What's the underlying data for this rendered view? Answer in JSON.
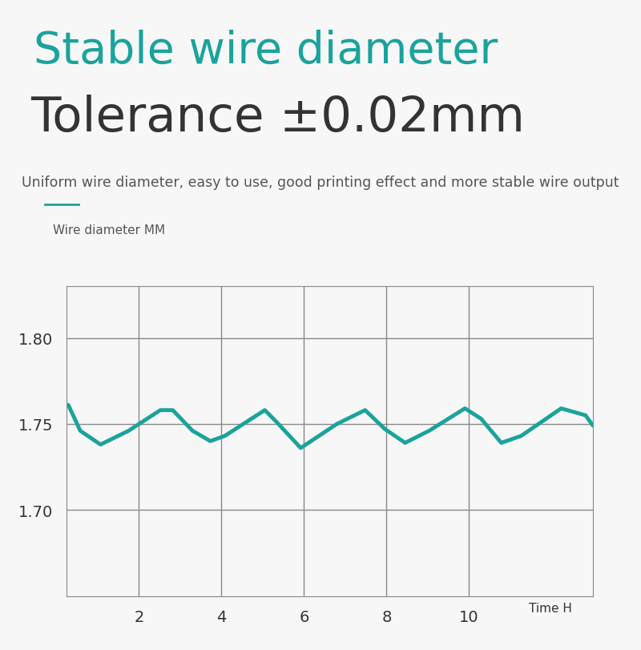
{
  "chart_data": {
    "type": "line",
    "title": "Stable wire diameter",
    "subtitle": "Tolerance ±0.02mm",
    "annotations": [
      "Uniform wire diameter, easy to use, good printing effect and more stable wire output"
    ],
    "y_label": "Wire diameter MM",
    "x_label": "Time H",
    "x": [
      0.29,
      0.58,
      1.07,
      1.75,
      2.52,
      2.82,
      3.3,
      3.73,
      4.08,
      5.05,
      5.34,
      5.92,
      6.8,
      7.48,
      7.96,
      8.45,
      9.03,
      9.9,
      10.29,
      10.78,
      11.26,
      12.23,
      12.82,
      13.0
    ],
    "values": [
      1.761,
      1.746,
      1.738,
      1.746,
      1.758,
      1.758,
      1.746,
      1.74,
      1.743,
      1.758,
      1.751,
      1.736,
      1.75,
      1.758,
      1.747,
      1.739,
      1.746,
      1.759,
      1.753,
      1.739,
      1.743,
      1.759,
      1.755,
      1.749
    ],
    "color": "#1aa39c",
    "xlim": [
      0.25,
      13.0
    ],
    "xticks": [
      2,
      4,
      6,
      8,
      10
    ],
    "ylim": [
      1.65,
      1.83
    ],
    "yticks": [
      {
        "value": 1.7,
        "label": "1.70"
      },
      {
        "value": 1.75,
        "label": "1.75"
      },
      {
        "value": 1.8,
        "label": "1.80"
      }
    ],
    "grid": true
  }
}
